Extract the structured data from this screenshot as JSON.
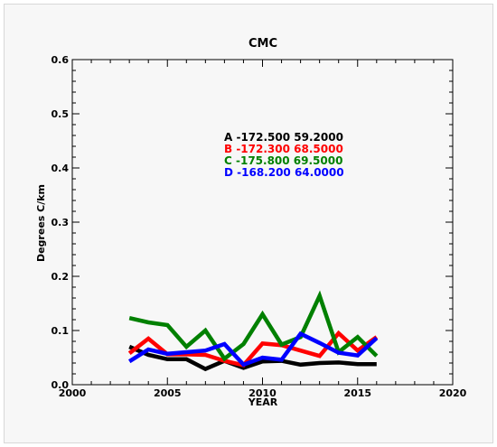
{
  "chart_data": {
    "type": "line",
    "title": "CMC",
    "xlabel": "YEAR",
    "ylabel": "Degrees C/km",
    "xlim": [
      2000,
      2020
    ],
    "ylim": [
      0.0,
      0.6
    ],
    "xticks": [
      "2000",
      "2005",
      "2010",
      "2015",
      "2020"
    ],
    "yticks": [
      "0.0",
      "0.1",
      "0.2",
      "0.3",
      "0.4",
      "0.5",
      "0.6"
    ],
    "grid": false,
    "legend_position": "upper-center",
    "x": [
      2003,
      2004,
      2005,
      2006,
      2007,
      2008,
      2009,
      2010,
      2011,
      2012,
      2013,
      2014,
      2015,
      2016
    ],
    "series": [
      {
        "name": "A -172.500 59.2000",
        "color": "#000000",
        "values": [
          0.07,
          0.055,
          0.047,
          0.047,
          0.029,
          0.044,
          0.031,
          0.043,
          0.044,
          0.037,
          0.04,
          0.041,
          0.038,
          0.038
        ]
      },
      {
        "name": "B -172.300 68.5000",
        "color": "#ff0000",
        "values": [
          0.058,
          0.085,
          0.056,
          0.056,
          0.055,
          0.044,
          0.036,
          0.076,
          0.073,
          0.063,
          0.053,
          0.095,
          0.063,
          0.088
        ]
      },
      {
        "name": "C -175.800 69.5000",
        "color": "#008000",
        "values": [
          0.123,
          0.115,
          0.11,
          0.07,
          0.1,
          0.048,
          0.075,
          0.13,
          0.074,
          0.088,
          0.164,
          0.06,
          0.088,
          0.053
        ]
      },
      {
        "name": "D -168.200 64.0000",
        "color": "#0000ff",
        "values": [
          0.043,
          0.065,
          0.057,
          0.06,
          0.063,
          0.075,
          0.037,
          0.05,
          0.046,
          0.094,
          0.077,
          0.059,
          0.054,
          0.086
        ]
      }
    ]
  }
}
